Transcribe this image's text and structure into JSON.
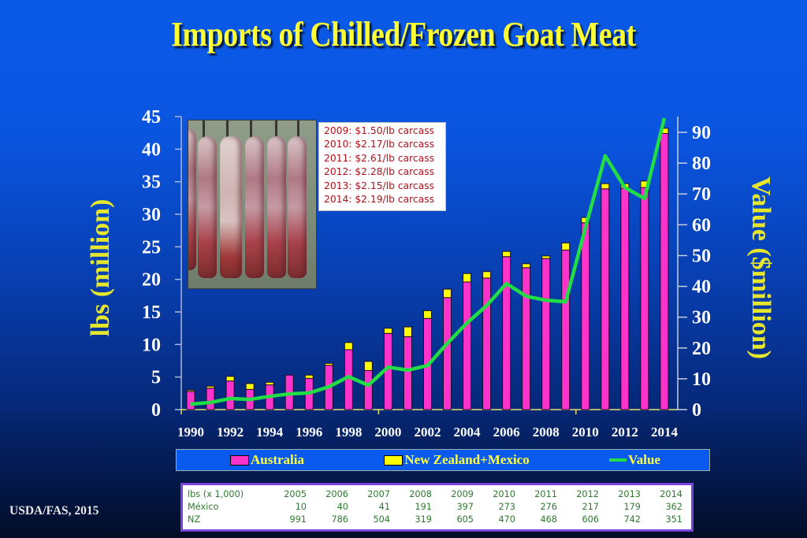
{
  "title": "Imports of Chilled/Frozen Goat Meat",
  "left_axis_label": "lbs (million)",
  "right_axis_label": "Value ($million)",
  "credit": "USDA/FAS, 2015",
  "colors": {
    "australia": "#ff33cc",
    "nz_mexico": "#ffff00",
    "value_line": "#22dd44",
    "title": "#ffff33",
    "axis_label": "#e6e62a",
    "price_text": "#b0101a",
    "table_text": "#2e7a2e",
    "table_border": "#7a44d8"
  },
  "price_notes": [
    "2009: $1.50/lb carcass",
    "2010: $2.17/lb carcass",
    "2011: $2.61/lb carcass",
    "2012: $2.28/lb carcass",
    "2013: $2.15/lb carcass",
    "2014: $2.19/lb carcass"
  ],
  "legend": {
    "australia": "Australia",
    "nz_mexico": "New Zealand+Mexico",
    "value": "Value"
  },
  "table": {
    "header_label": "lbs (x 1,000)",
    "years": [
      "2005",
      "2006",
      "2007",
      "2008",
      "2009",
      "2010",
      "2011",
      "2012",
      "2013",
      "2014"
    ],
    "rows": [
      {
        "label": "México",
        "values": [
          "10",
          "40",
          "41",
          "191",
          "397",
          "273",
          "276",
          "217",
          "179",
          "362"
        ]
      },
      {
        "label": "NZ",
        "values": [
          "991",
          "786",
          "504",
          "319",
          "605",
          "470",
          "468",
          "606",
          "742",
          "351"
        ]
      }
    ]
  },
  "chart_data": {
    "type": "bar",
    "title": "Imports of Chilled/Frozen Goat Meat",
    "xlabel": "",
    "ylabel": "lbs (million)",
    "y2label": "Value ($million)",
    "ylim": [
      0,
      45
    ],
    "y2lim": [
      0,
      90
    ],
    "yticks": [
      0,
      5,
      10,
      15,
      20,
      25,
      30,
      35,
      40,
      45
    ],
    "y2ticks": [
      0,
      10,
      20,
      30,
      40,
      50,
      60,
      70,
      80,
      90
    ],
    "xtick_labels": [
      "1990",
      "1992",
      "1994",
      "1996",
      "1998",
      "2000",
      "2002",
      "2004",
      "2006",
      "2008",
      "2010",
      "2012",
      "2014"
    ],
    "stacked": true,
    "legend_position": "bottom",
    "grid": false,
    "categories": [
      "1990",
      "1991",
      "1992",
      "1993",
      "1994",
      "1995",
      "1996",
      "1997",
      "1998",
      "1999",
      "2000",
      "2001",
      "2002",
      "2003",
      "2004",
      "2005",
      "2006",
      "2007",
      "2008",
      "2009",
      "2010",
      "2011",
      "2012",
      "2013",
      "2014"
    ],
    "series": [
      {
        "name": "Australia",
        "type": "bar",
        "axis": "left",
        "values": [
          2.8,
          3.3,
          4.4,
          3.1,
          3.8,
          5.3,
          4.8,
          6.8,
          9.2,
          6.0,
          11.7,
          11.2,
          14.0,
          17.2,
          19.6,
          20.2,
          23.5,
          21.8,
          23.2,
          24.5,
          28.7,
          33.9,
          34.0,
          34.1,
          42.4
        ]
      },
      {
        "name": "New Zealand+Mexico",
        "type": "bar",
        "axis": "left",
        "values": [
          0.2,
          0.3,
          0.7,
          0.9,
          0.4,
          0.0,
          0.5,
          0.3,
          1.1,
          1.4,
          0.8,
          1.5,
          1.2,
          1.3,
          1.3,
          1.0,
          0.8,
          0.6,
          0.4,
          1.1,
          0.8,
          0.8,
          0.7,
          1.0,
          0.8
        ]
      },
      {
        "name": "Value",
        "type": "line",
        "axis": "right",
        "values": [
          1.8,
          2.3,
          3.6,
          3.3,
          4.3,
          5.1,
          5.4,
          7.4,
          10.7,
          7.9,
          13.8,
          12.8,
          14.3,
          21.5,
          28.1,
          33.8,
          40.9,
          36.8,
          35.5,
          35.0,
          59.0,
          82.4,
          72.1,
          68.5,
          94.6
        ]
      }
    ],
    "annotations": [
      "2009: $1.50/lb carcass",
      "2010: $2.17/lb carcass",
      "2011: $2.61/lb carcass",
      "2012: $2.28/lb carcass",
      "2013: $2.15/lb carcass",
      "2014: $2.19/lb carcass"
    ]
  }
}
